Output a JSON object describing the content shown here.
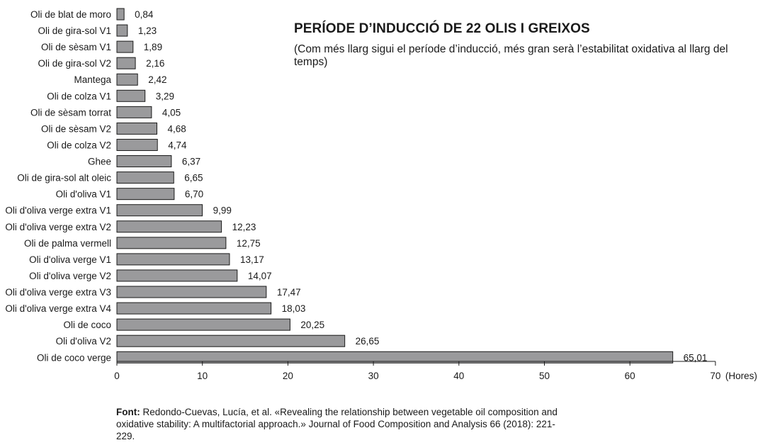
{
  "chart_data": {
    "type": "bar",
    "orientation": "horizontal",
    "title": "PERÍODE D’INDUCCIÓ DE 22 OLIS I GREIXOS",
    "subtitle": "(Com més llarg sigui el període d’inducció, més gran serà l’estabilitat oxidativa al llarg del temps)",
    "xlabel": "(Hores)",
    "xlim": [
      0,
      70
    ],
    "xticks": [
      0,
      10,
      20,
      30,
      40,
      50,
      60,
      70
    ],
    "categories": [
      "Oli de blat de moro",
      "Oli de gira-sol V1",
      "Oli de sèsam V1",
      "Oli de gira-sol V2",
      "Mantega",
      "Oli de colza V1",
      "Oli de sèsam torrat",
      "Oli de sèsam V2",
      "Oli de colza V2",
      "Ghee",
      "Oli de gira-sol alt oleic",
      "Oli d'oliva V1",
      "Oli d'oliva verge extra V1",
      "Oli d'oliva verge extra V2",
      "Oli de palma vermell",
      "Oli d'oliva verge V1",
      "Oli d'oliva verge V2",
      "Oli d'oliva verge extra V3",
      "Oli d'oliva verge extra V4",
      "Oli de coco",
      "Oli d'oliva V2",
      "Oli de coco verge"
    ],
    "values": [
      0.84,
      1.23,
      1.89,
      2.16,
      2.42,
      3.29,
      4.05,
      4.68,
      4.74,
      6.37,
      6.65,
      6.7,
      9.99,
      12.23,
      12.75,
      13.17,
      14.07,
      17.47,
      18.03,
      20.25,
      26.65,
      65.01
    ],
    "value_labels": [
      "0,84",
      "1,23",
      "1,89",
      "2,16",
      "2,42",
      "3,29",
      "4,05",
      "4,68",
      "4,74",
      "6,37",
      "6,65",
      "6,70",
      "9,99",
      "12,23",
      "12,75",
      "13,17",
      "14,07",
      "17,47",
      "18,03",
      "20,25",
      "26,65",
      "65,01"
    ],
    "bar_color": "#9a9a9c",
    "bar_stroke": "#1a1a1a",
    "grid": false
  },
  "source": {
    "label": "Font:",
    "text": "Redondo-Cuevas, Lucía, et al. «Revealing the relationship between vegetable oil composition and oxidative stability: A multifactorial approach.» Journal of Food Composition and Analysis 66 (2018): 221-229."
  }
}
